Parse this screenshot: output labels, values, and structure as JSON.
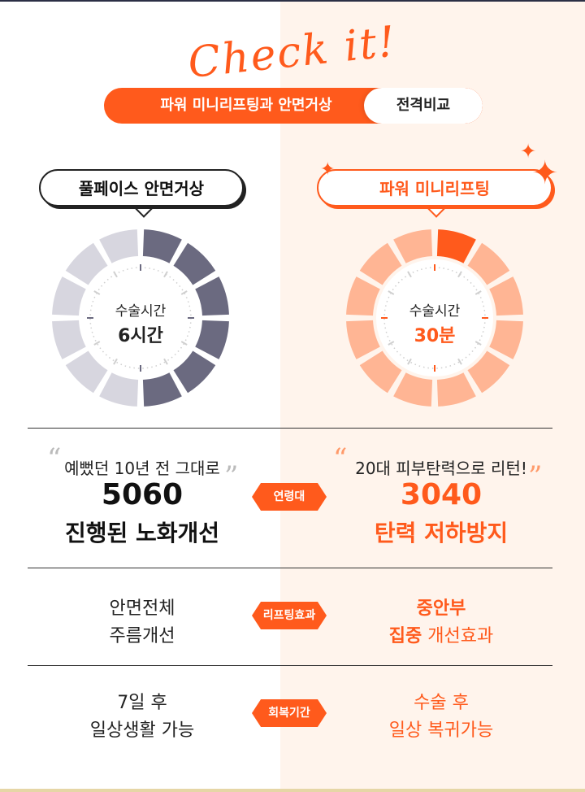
{
  "header": {
    "script_title": "Check it!",
    "compare_left": "파워 미니리프팅과 안면거상",
    "compare_right": "전격비교"
  },
  "left": {
    "bubble": "풀페이스 안면거상",
    "donut_caption": "수술시간",
    "donut_value": "6시간",
    "donut_fraction": 0.5,
    "color_filled": "#6b6a80",
    "color_empty": "#d7d6df"
  },
  "right": {
    "bubble": "파워 미니리프팅",
    "donut_caption": "수술시간",
    "donut_value": "30분",
    "donut_fraction": 0.0833,
    "color_filled": "#ff5a1c",
    "color_empty": "#ffb594"
  },
  "rows": [
    {
      "tag": "연령대",
      "left_lines": [
        "예뻤던 10년 전 그대로",
        "5060",
        "진행된 노화개선"
      ],
      "right_lines": [
        "20대 피부탄력으로 리턴!",
        "3040",
        "탄력 저하방지"
      ]
    },
    {
      "tag": "리프팅효과",
      "left_lines": [
        "안면전체",
        "주름개선"
      ],
      "right_lines": [
        "중안부",
        "집중",
        "개선효과"
      ]
    },
    {
      "tag": "회복기간",
      "left_lines": [
        "7일 후",
        "일상생활 가능"
      ],
      "right_lines": [
        "수술 후",
        "일상 복귀가능"
      ]
    }
  ],
  "colors": {
    "accent": "#ff5a1c",
    "dark": "#222222",
    "right_bg": "#fff4ec"
  }
}
